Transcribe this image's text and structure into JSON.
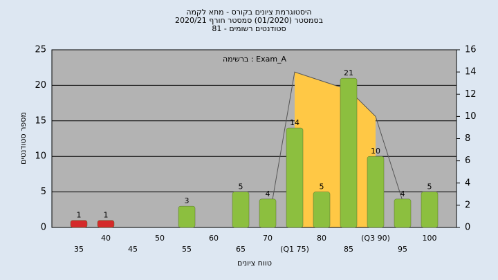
{
  "chart_data": {
    "type": "bar",
    "title": "היסטוגרמת ציונים בקורס - מתא לקמה",
    "subtitle": "בסמסטר  (01/2020)  סמסטר חורף  2020/21",
    "subtitle2": "סטודנטים רשומים - 81",
    "annotation": "ברשימה : Exam_A",
    "x_label": "טווח ציונים",
    "y_label": "מספר סטודנטים",
    "categories": [
      "35",
      "40",
      "45",
      "50",
      "55",
      "60",
      "65",
      "70",
      "(Q1 75)",
      "80",
      "85",
      "(Q3 90)",
      "95",
      "100"
    ],
    "values": [
      1,
      1,
      0,
      0,
      3,
      0,
      5,
      4,
      14,
      5,
      21,
      10,
      4,
      5
    ],
    "colors": [
      "#d42a2a",
      "#d42a2a",
      "#8cbf3f",
      "#8cbf3f",
      "#8cbf3f",
      "#8cbf3f",
      "#8cbf3f",
      "#8cbf3f",
      "#8cbf3f",
      "#8cbf3f",
      "#8cbf3f",
      "#8cbf3f",
      "#8cbf3f",
      "#8cbf3f"
    ],
    "ylim": [
      0,
      25
    ],
    "yticks": [
      0,
      5,
      10,
      15,
      20,
      25
    ],
    "y2lim": [
      0,
      16
    ],
    "y2ticks": [
      0,
      2,
      4,
      6,
      8,
      10,
      12,
      14,
      16
    ],
    "area": {
      "axis": "y2",
      "color": "#ffc845",
      "values": [
        null,
        null,
        null,
        null,
        null,
        null,
        null,
        null,
        14,
        13.2,
        12.4,
        10,
        null,
        null
      ]
    },
    "line": {
      "axis": "y2",
      "color": "#555555",
      "values": [
        null,
        null,
        null,
        null,
        null,
        null,
        null,
        0,
        14,
        13.2,
        12.4,
        10,
        2.4,
        null
      ]
    },
    "grid": true
  }
}
